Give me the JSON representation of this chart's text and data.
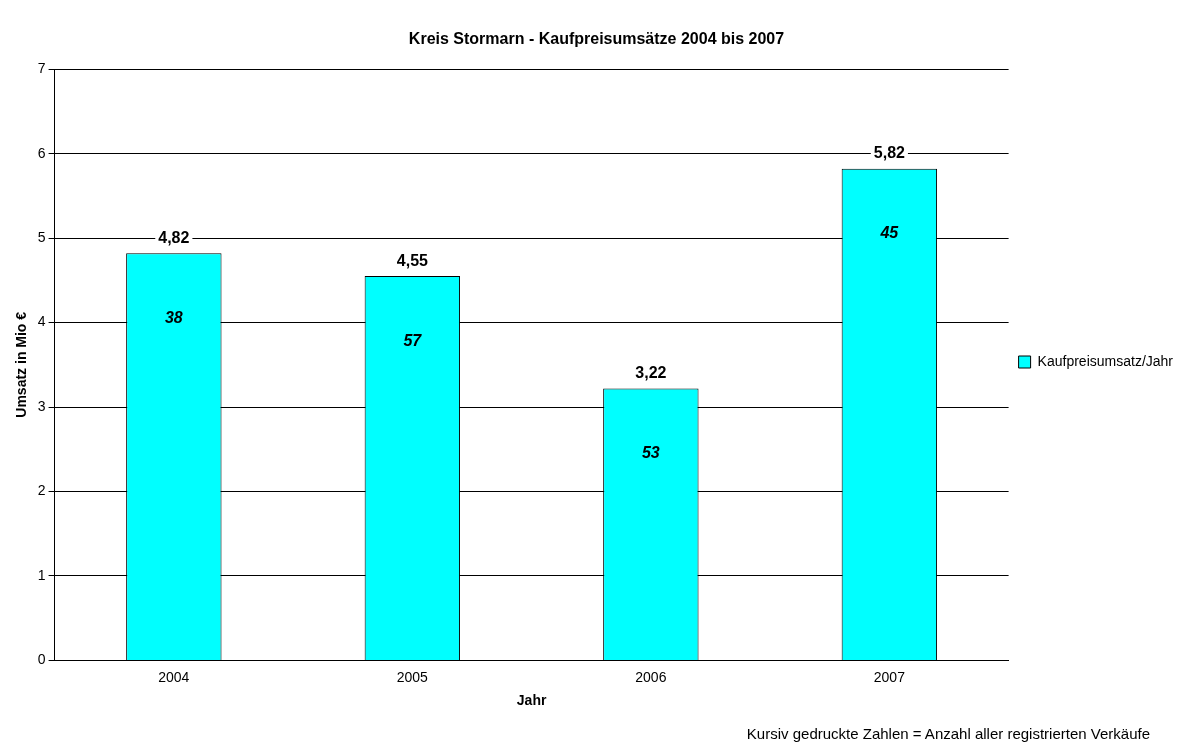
{
  "chart_data": {
    "type": "bar",
    "title": "Kreis Stormarn - Kaufpreisumsätze 2004 bis 2007",
    "xlabel": "Jahr",
    "ylabel": "Umsatz in Mio €",
    "categories": [
      "2004",
      "2005",
      "2006",
      "2007"
    ],
    "series": [
      {
        "name": "Kaufpreisumsatz/Jahr",
        "color": "#00ffff",
        "values": [
          4.82,
          4.55,
          3.22,
          5.82
        ],
        "value_labels": [
          "4,82",
          "4,55",
          "3,22",
          "5,82"
        ]
      }
    ],
    "ylim": [
      0,
      7
    ],
    "yticks": [
      0,
      1,
      2,
      3,
      4,
      5,
      6,
      7
    ],
    "grid": "y",
    "legend": "right",
    "annotations": [
      "38",
      "57",
      "53",
      "45",
      "Kursiv gedruckte Zahlen = Anzahl aller registrierten Verkäufe"
    ]
  }
}
